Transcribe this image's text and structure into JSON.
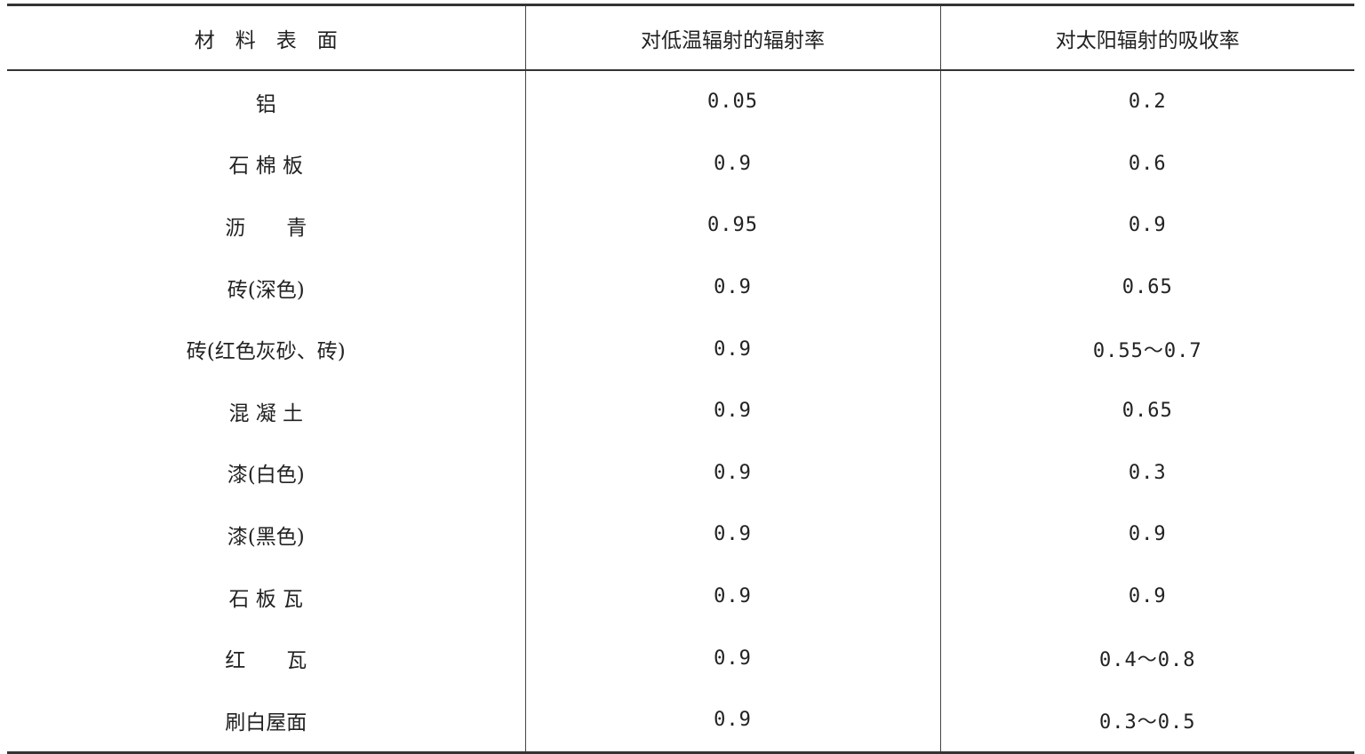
{
  "table": {
    "headers": [
      "材　料　表　面",
      "对低温辐射的辐射率",
      "对太阳辐射的吸收率"
    ],
    "rows": [
      [
        "铝",
        "0.05",
        "0.2"
      ],
      [
        "石 棉 板",
        "0.9",
        "0.6"
      ],
      [
        "沥　　青",
        "0.95",
        "0.9"
      ],
      [
        "砖(深色)",
        "0.9",
        "0.65"
      ],
      [
        "砖(红色灰砂、砖)",
        "0.9",
        "0.55～0.7"
      ],
      [
        "混 凝 土",
        "0.9",
        "0.65"
      ],
      [
        "漆(白色)",
        "0.9",
        "0.3"
      ],
      [
        "漆(黑色)",
        "0.9",
        "0.9"
      ],
      [
        "石 板 瓦",
        "0.9",
        "0.9"
      ],
      [
        "红　　瓦",
        "0.9",
        "0.4～0.8"
      ],
      [
        "刷白屋面",
        "0.9",
        "0.3～0.5"
      ]
    ]
  }
}
